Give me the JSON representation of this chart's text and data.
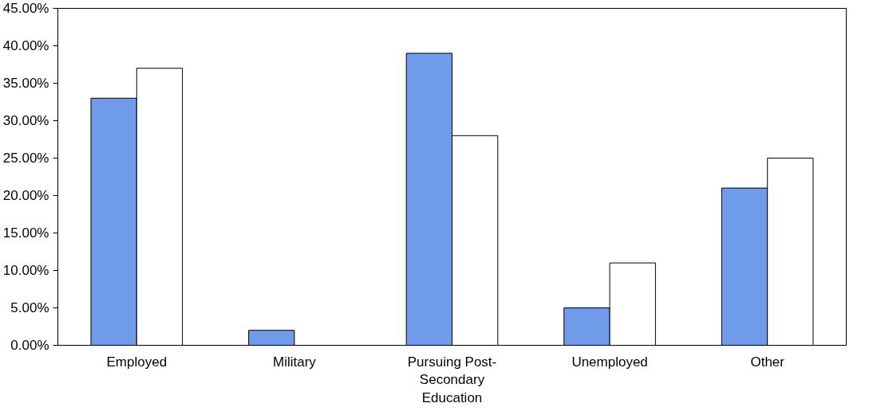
{
  "chart_data": {
    "type": "bar",
    "categories": [
      "Employed",
      "Military",
      "Pursuing Post-Secondary Education",
      "Unemployed",
      "Other"
    ],
    "series": [
      {
        "color": "#6f9be8",
        "values": [
          33,
          2,
          39,
          5,
          21
        ]
      },
      {
        "color": "#ffffff",
        "values": [
          37,
          null,
          28,
          11,
          25
        ]
      }
    ],
    "ylim": [
      0,
      45
    ],
    "yticks": [
      {
        "value": 0,
        "label": "0.00%"
      },
      {
        "value": 5,
        "label": "5.00%"
      },
      {
        "value": 10,
        "label": "10.00%"
      },
      {
        "value": 15,
        "label": "15.00%"
      },
      {
        "value": 20,
        "label": "20.00%"
      },
      {
        "value": 25,
        "label": "25.00%"
      },
      {
        "value": 30,
        "label": "30.00%"
      },
      {
        "value": 35,
        "label": "35.00%"
      },
      {
        "value": 40,
        "label": "40.00%"
      },
      {
        "value": 45,
        "label": "45.00%"
      }
    ],
    "grid": false
  }
}
